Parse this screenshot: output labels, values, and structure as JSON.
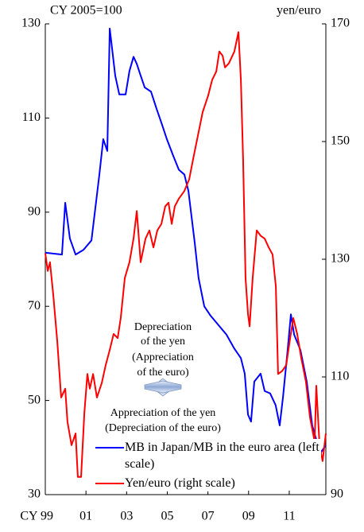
{
  "chart_data": {
    "type": "line",
    "y_unit": "CY 2005=100",
    "y2_unit": "yen/euro",
    "xlim": [
      1999,
      2012.8
    ],
    "xticks": [
      {
        "value": 1999,
        "label": "CY 99"
      },
      {
        "value": 2001,
        "label": "01"
      },
      {
        "value": 2003,
        "label": "03"
      },
      {
        "value": 2005,
        "label": "05"
      },
      {
        "value": 2007,
        "label": "07"
      },
      {
        "value": 2009,
        "label": "09"
      },
      {
        "value": 2011,
        "label": "11"
      }
    ],
    "ylim": [
      30,
      130
    ],
    "yticks": [
      30,
      50,
      70,
      90,
      110,
      130
    ],
    "y2lim": [
      90,
      170
    ],
    "y2ticks": [
      90,
      110,
      130,
      150,
      170
    ],
    "annotations": [
      "Depreciation",
      "of the yen",
      "(Appreciation",
      "of the euro)",
      "Appreciation of the yen",
      "(Depreciation of the euro)"
    ],
    "series": [
      {
        "name": "MB in Japan/MB in the euro area (left scale)",
        "color": "#0000ff",
        "axis": "y",
        "x": [
          1999.0,
          1999.82,
          1999.98,
          2000.21,
          2000.49,
          2000.88,
          2001.27,
          2001.66,
          2001.85,
          2002.05,
          2002.17,
          2002.44,
          2002.64,
          2002.95,
          2003.14,
          2003.34,
          2003.5,
          2003.69,
          2003.89,
          2004.2,
          2004.47,
          2004.71,
          2004.98,
          2005.29,
          2005.57,
          2005.84,
          2006.04,
          2006.35,
          2006.54,
          2006.82,
          2007.13,
          2007.52,
          2007.91,
          2008.3,
          2008.62,
          2008.81,
          2008.97,
          2009.12,
          2009.28,
          2009.59,
          2009.79,
          2010.06,
          2010.33,
          2010.53,
          2010.69,
          2010.92,
          2011.08,
          2011.24,
          2011.55,
          2011.86,
          2012.13,
          2012.41,
          2012.57,
          2012.8
        ],
        "values": [
          81.4,
          81,
          92,
          84.4,
          81,
          82,
          84,
          98,
          105.5,
          103,
          129,
          119,
          115,
          115,
          120,
          123,
          121.5,
          119,
          116.5,
          115.6,
          112,
          109,
          105.5,
          102,
          99,
          98,
          94.5,
          83.5,
          76,
          70,
          68,
          66,
          64,
          61,
          59,
          55.7,
          47,
          45.5,
          54,
          55.7,
          52,
          51.5,
          49,
          44.7,
          50.6,
          60.7,
          68.3,
          64,
          60.7,
          54,
          44.7,
          40.5,
          39,
          40.5
        ]
      },
      {
        "name": "Yen/euro (right scale)",
        "color": "#ff0000",
        "axis": "y2",
        "x": [
          1999.0,
          1999.12,
          1999.23,
          1999.39,
          1999.59,
          1999.78,
          1999.98,
          2000.09,
          2000.29,
          2000.49,
          2000.6,
          2000.76,
          2000.92,
          2001.07,
          2001.19,
          2001.35,
          2001.54,
          2001.78,
          2001.97,
          2002.17,
          2002.36,
          2002.56,
          2002.71,
          2002.91,
          2003.14,
          2003.34,
          2003.5,
          2003.69,
          2003.93,
          2004.12,
          2004.32,
          2004.51,
          2004.71,
          2004.9,
          2005.06,
          2005.22,
          2005.37,
          2005.57,
          2005.84,
          2006.08,
          2006.27,
          2006.47,
          2006.74,
          2007.01,
          2007.21,
          2007.41,
          2007.56,
          2007.72,
          2007.84,
          2008.03,
          2008.3,
          2008.5,
          2008.62,
          2008.73,
          2008.85,
          2008.97,
          2009.05,
          2009.2,
          2009.4,
          2009.59,
          2009.79,
          2009.99,
          2010.18,
          2010.34,
          2010.45,
          2010.65,
          2010.85,
          2011.04,
          2011.2,
          2011.39,
          2011.59,
          2011.82,
          2012.02,
          2012.25,
          2012.33,
          2012.49,
          2012.64,
          2012.8
        ],
        "values": [
          131,
          128,
          129.5,
          124,
          116,
          106.5,
          108,
          102.4,
          98.4,
          100.4,
          93,
          93,
          103.8,
          110.5,
          108,
          110.5,
          106.5,
          109,
          112,
          114.6,
          117.3,
          116.6,
          120,
          126.8,
          129.5,
          133.5,
          138.2,
          129.5,
          133.5,
          134.9,
          132,
          134.9,
          136,
          139,
          139.6,
          136,
          139,
          140.3,
          141.6,
          143.6,
          147,
          150.4,
          155,
          157.8,
          160.5,
          161.9,
          165.3,
          164.6,
          162.6,
          163.3,
          165.3,
          168.6,
          160.5,
          147,
          126.8,
          120.7,
          118.6,
          126.8,
          134.9,
          134,
          133.5,
          132,
          130.8,
          125.4,
          110.5,
          111,
          112,
          116.5,
          120,
          117.3,
          113.2,
          109.2,
          103.1,
          99,
          108.5,
          98.4,
          95.7,
          100.4
        ]
      }
    ]
  }
}
